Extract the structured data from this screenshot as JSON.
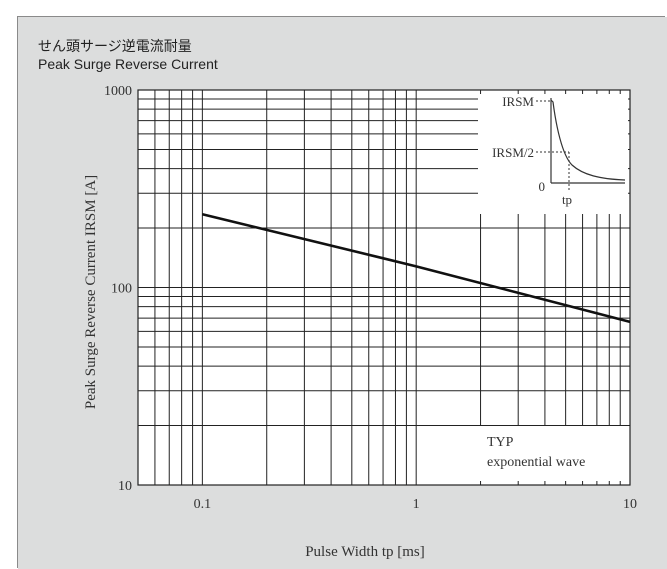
{
  "title_jp": "せん頭サージ逆電流耐量",
  "title_en": "Peak Surge Reverse Current",
  "chart_data": {
    "type": "line",
    "title": "Peak Surge Reverse Current",
    "xlabel": "Pulse Width tp [ms]",
    "ylabel": "Peak Surge Reverse Current IRSM [A]",
    "x_scale": "log",
    "y_scale": "log",
    "xlim": [
      0.05,
      10
    ],
    "ylim": [
      10,
      1000
    ],
    "x_ticks": [
      {
        "value": 0.1,
        "label": "0.1"
      },
      {
        "value": 1,
        "label": "1"
      },
      {
        "value": 10,
        "label": "10"
      }
    ],
    "y_ticks": [
      {
        "value": 10,
        "label": "10"
      },
      {
        "value": 100,
        "label": "100"
      },
      {
        "value": 1000,
        "label": "1000"
      }
    ],
    "grid": true,
    "series": [
      {
        "x": [
          0.1,
          1,
          10
        ],
        "y": [
          235,
          128,
          67
        ]
      }
    ],
    "annotation_lines": [
      "TYP",
      "exponential wave"
    ],
    "inset": {
      "labels": [
        "IRSM",
        "IRSM/2",
        "0",
        "tp"
      ]
    }
  }
}
